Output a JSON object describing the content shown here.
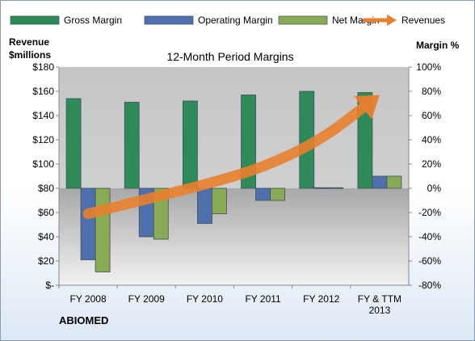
{
  "chart_data": {
    "type": "bar",
    "title": "12-Month Period Margins",
    "ylabel_left": [
      "Revenue",
      "$millions"
    ],
    "ylabel_right": "Margin %",
    "company": "ABIOMED",
    "categories": [
      [
        "FY 2008"
      ],
      [
        "FY 2009"
      ],
      [
        "FY 2010"
      ],
      [
        "FY 2011"
      ],
      [
        "FY 2012"
      ],
      [
        "FY & TTM",
        "2013"
      ]
    ],
    "left_axis": {
      "min": 0,
      "max": 180,
      "step": 20,
      "tick_labels": [
        "$-",
        "$20",
        "$40",
        "$60",
        "$80",
        "$100",
        "$120",
        "$140",
        "$160",
        "$180"
      ]
    },
    "right_axis": {
      "min": -80,
      "max": 100,
      "step": 20,
      "tick_labels": [
        "-80%",
        "-60%",
        "-40%",
        "-20%",
        "0%",
        "20%",
        "40%",
        "60%",
        "80%",
        "100%"
      ]
    },
    "grid": false,
    "legend_position": "top",
    "series": [
      {
        "name": "Gross Margin",
        "kind": "bar",
        "axis": "right",
        "color": "#2e8b57",
        "values": [
          74,
          71,
          72,
          77,
          80,
          79
        ]
      },
      {
        "name": "Operating Margin",
        "kind": "bar",
        "axis": "right",
        "color": "#4f6fad",
        "values": [
          -59,
          -40,
          -29,
          -10,
          0.5,
          10
        ]
      },
      {
        "name": "Net Margin",
        "kind": "bar",
        "axis": "right",
        "color": "#8aab55",
        "values": [
          -69,
          -42,
          -21,
          -10,
          0.5,
          10
        ]
      },
      {
        "name": "Revenues",
        "kind": "arrow",
        "axis": "left",
        "color": "#e87f2e",
        "values": [
          59,
          71,
          83,
          97,
          120,
          157
        ]
      }
    ]
  }
}
